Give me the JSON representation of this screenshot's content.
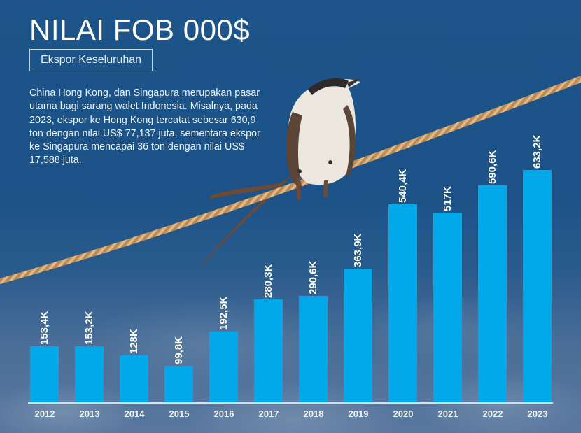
{
  "header": {
    "title": "NILAI FOB 000$",
    "badge": "Ekspor Keseluruhan",
    "description": "China Hong Kong, dan Singapura merupakan pasar utama bagi sarang walet Indonesia. Misalnya, pada 2023, ekspor ke Hong Kong tercatat sebesar 630,9 ton dengan nilai US$ 77,137 juta, sementara ekspor ke Singapura mencapai 36 ton dengan nilai US$ 17,588 juta."
  },
  "colors": {
    "background": "#1d5489",
    "bar": "#01a9eb",
    "text": "#ffffff"
  },
  "decoration": {
    "image": "bird-perched-on-rope-icon"
  },
  "chart_data": {
    "type": "bar",
    "title": "NILAI FOB 000$",
    "subtitle": "Ekspor Keseluruhan",
    "xlabel": "",
    "ylabel": "",
    "categories": [
      "2012",
      "2013",
      "2014",
      "2015",
      "2016",
      "2017",
      "2018",
      "2019",
      "2020",
      "2021",
      "2022",
      "2023"
    ],
    "values": [
      153.4,
      153.2,
      128,
      99.8,
      192.5,
      280.3,
      290.6,
      363.9,
      540.4,
      517,
      590.6,
      633.2
    ],
    "value_unit": "K",
    "labels": [
      "153,4K",
      "153,2K",
      "128K",
      "99,8K",
      "192,5K",
      "280,3K",
      "290,6K",
      "363,9K",
      "540,4K",
      "517K",
      "590,6K",
      "633,2K"
    ],
    "ylim": [
      0,
      700
    ],
    "grid": false,
    "legend": "none"
  },
  "bars": [
    {
      "year": "2012",
      "label": "153,4K"
    },
    {
      "year": "2013",
      "label": "153,2K"
    },
    {
      "year": "2014",
      "label": "128K"
    },
    {
      "year": "2015",
      "label": "99,8K"
    },
    {
      "year": "2016",
      "label": "192,5K"
    },
    {
      "year": "2017",
      "label": "280,3K"
    },
    {
      "year": "2018",
      "label": "290,6K"
    },
    {
      "year": "2019",
      "label": "363,9K"
    },
    {
      "year": "2020",
      "label": "540,4K"
    },
    {
      "year": "2021",
      "label": "517K"
    },
    {
      "year": "2022",
      "label": "590,6K"
    },
    {
      "year": "2023",
      "label": "633,2K"
    }
  ]
}
